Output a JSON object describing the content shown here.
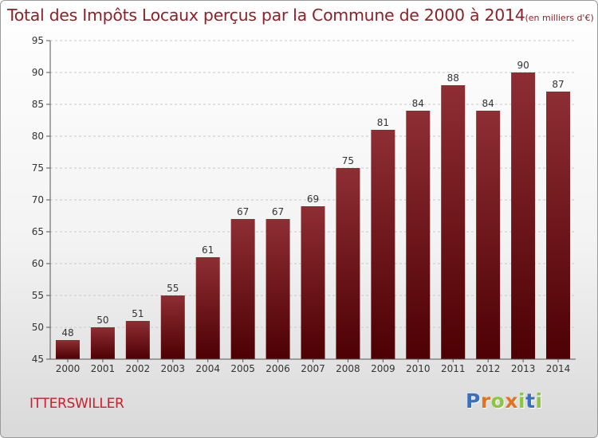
{
  "title": {
    "main": "Total des Impôts Locaux perçus par la Commune de 2000 à 2014",
    "unit": "(en milliers d'€)"
  },
  "commune": "ITTERSWILLER",
  "logo": {
    "letters": [
      {
        "char": "P",
        "color": "#3a6fbf"
      },
      {
        "char": "r",
        "color": "#e8711c"
      },
      {
        "char": "o",
        "color": "#8cc63f"
      },
      {
        "char": "x",
        "color": "#e8711c"
      },
      {
        "char": "i",
        "color": "#8cc63f"
      },
      {
        "char": "t",
        "color": "#3a6fbf"
      },
      {
        "char": "i",
        "color": "#8cc63f"
      }
    ]
  },
  "colors": {
    "bar_top": "#8e2e34",
    "bar_bottom": "#4d0003",
    "title": "#8b2228"
  },
  "chart_data": {
    "type": "bar",
    "title": "Total des Impôts Locaux perçus par la Commune de 2000 à 2014",
    "xlabel": "",
    "ylabel": "",
    "ylim": [
      45,
      95
    ],
    "yticks": [
      45,
      50,
      55,
      60,
      65,
      70,
      75,
      80,
      85,
      90,
      95
    ],
    "grid": true,
    "categories": [
      "2000",
      "2001",
      "2002",
      "2003",
      "2004",
      "2005",
      "2006",
      "2007",
      "2008",
      "2009",
      "2010",
      "2011",
      "2012",
      "2013",
      "2014"
    ],
    "values": [
      48,
      50,
      51,
      55,
      61,
      67,
      67,
      69,
      75,
      81,
      84,
      88,
      84,
      90,
      87
    ]
  }
}
